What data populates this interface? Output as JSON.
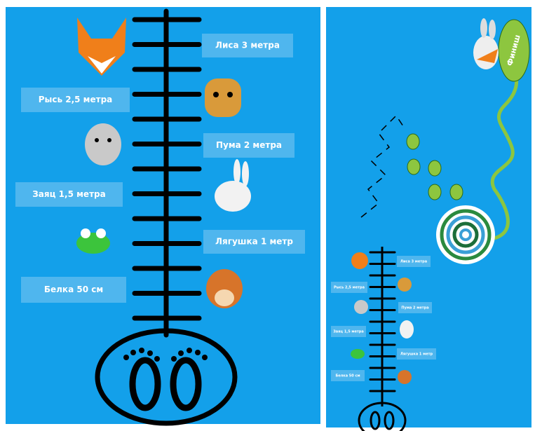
{
  "left_panel": {
    "labels": [
      "Лиса 3 метра",
      "Рысь 2,5 метра",
      "Пума 2 метра",
      "Заяц 1,5 метра",
      "Лягушка 1 метр",
      "Белка 50 см"
    ]
  },
  "right_panel": {
    "labels": [
      "Лиса 3 метра",
      "Рысь 2,5 метра",
      "Пума 2 метра",
      "Заяц 1,5 метра",
      "Лягушка 1 метр",
      "Белка 50 см"
    ],
    "finish": "Финиш"
  }
}
